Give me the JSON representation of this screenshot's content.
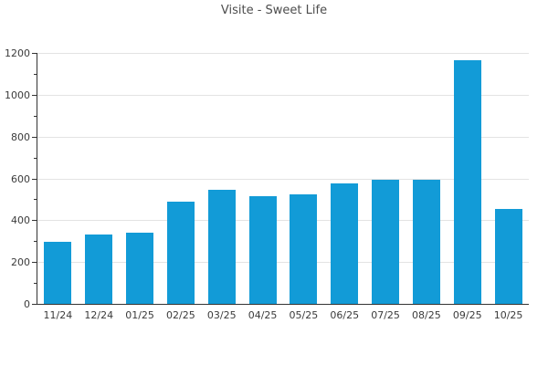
{
  "chart_data": {
    "type": "bar",
    "title": "Visite - Sweet Life",
    "categories": [
      "11/24",
      "12/24",
      "01/25",
      "02/25",
      "03/25",
      "04/25",
      "05/25",
      "06/25",
      "07/25",
      "08/25",
      "09/25",
      "10/25"
    ],
    "values": [
      295,
      330,
      340,
      490,
      545,
      515,
      525,
      578,
      595,
      593,
      1165,
      452
    ],
    "xlabel": "",
    "ylabel": "",
    "ylim": [
      0,
      1200
    ],
    "yticks": [
      0,
      200,
      400,
      600,
      800,
      1000,
      1200
    ],
    "ytick_step": 200,
    "yminor_step": 100,
    "grid": "horizontal",
    "legend": "none",
    "colors": {
      "bar": "#129bd7",
      "grid": "#e3e3e3",
      "axis": "#333333",
      "tick_label": "#3b3b3b",
      "title": "#4d4d4d",
      "background": "#ffffff"
    }
  }
}
